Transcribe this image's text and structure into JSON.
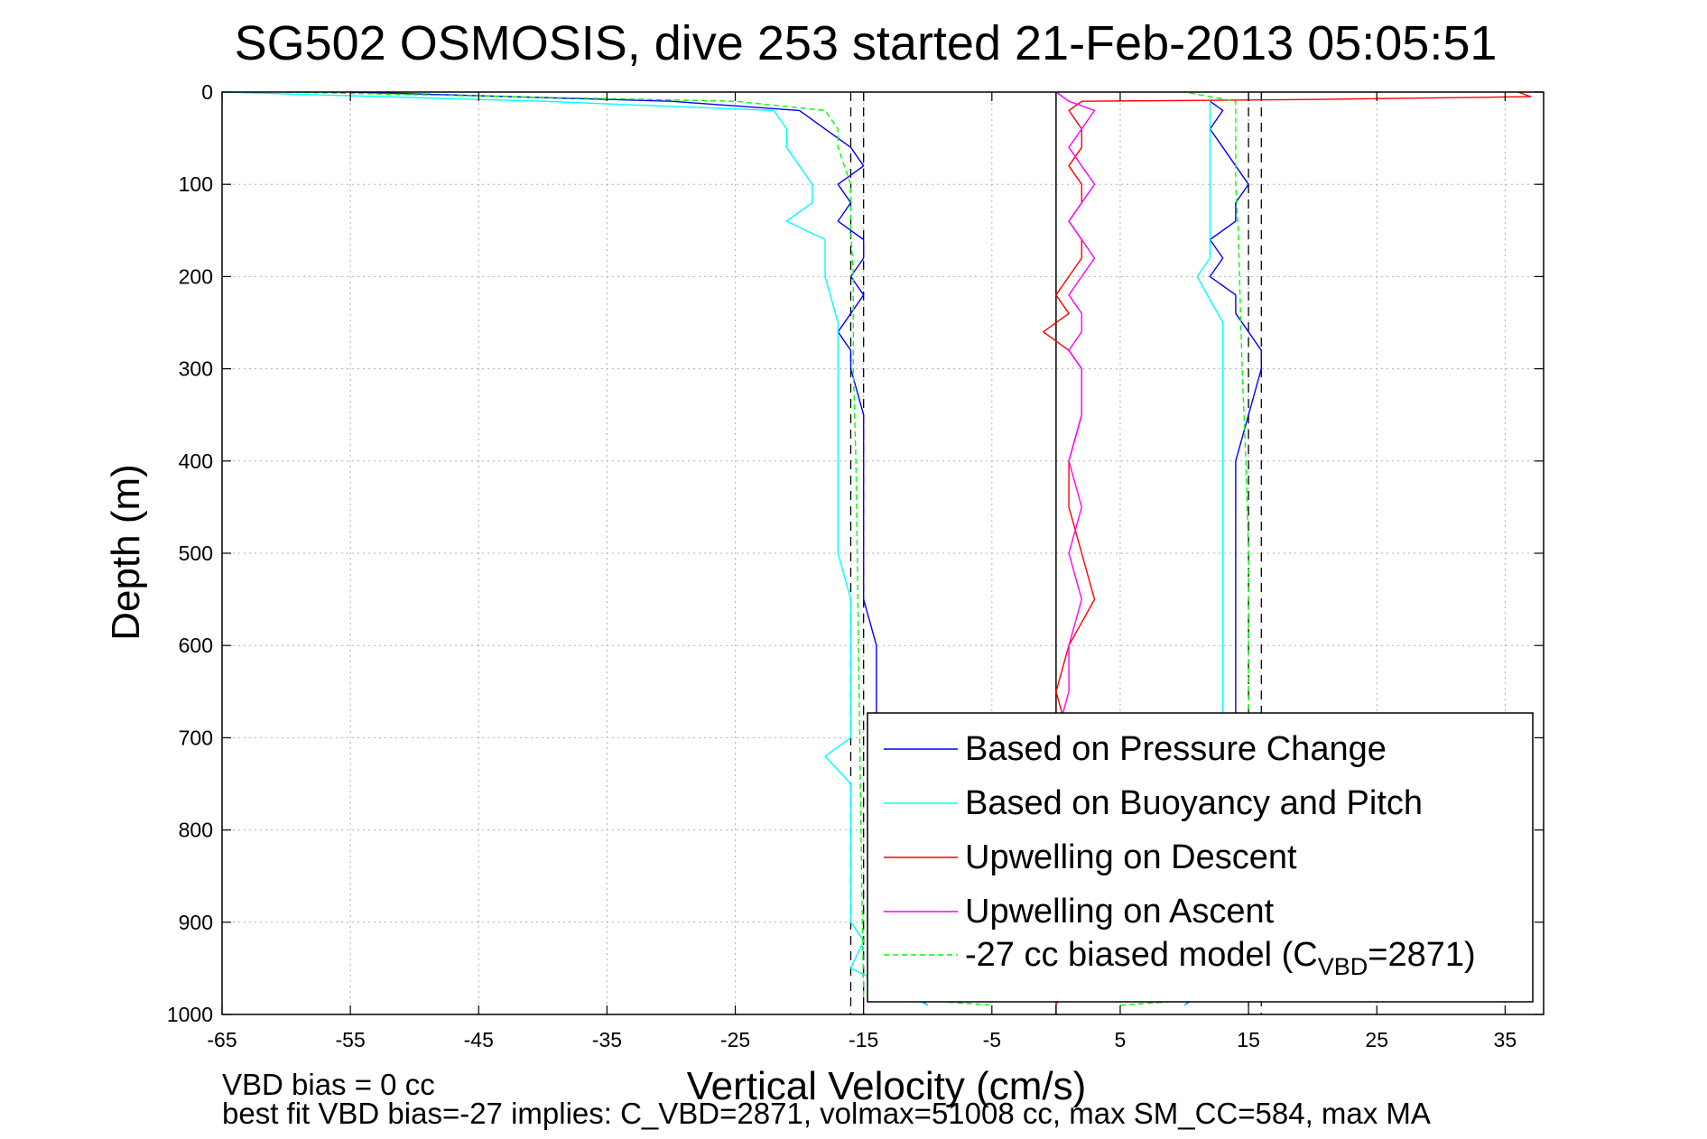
{
  "chart_data": {
    "type": "line",
    "title": "SG502 OSMOSIS, dive 253 started 21-Feb-2013 05:05:51",
    "xlabel": "Vertical Velocity (cm/s)",
    "ylabel": "Depth (m)",
    "xlim": [
      -65,
      38
    ],
    "ylim": [
      1000,
      0
    ],
    "y_reversed": true,
    "x_ticks": [
      -65,
      -55,
      -45,
      -35,
      -25,
      -15,
      -5,
      5,
      15,
      25,
      35
    ],
    "y_ticks": [
      0,
      100,
      200,
      300,
      400,
      500,
      600,
      700,
      800,
      900,
      1000
    ],
    "grid": true,
    "legend_position": "bottom-right",
    "reference_lines": {
      "solid_x": [
        0
      ],
      "dashed_x": [
        -16,
        -15,
        15,
        16
      ]
    },
    "series": [
      {
        "name": "Based on Pressure Change",
        "color": "#0000ff",
        "style": "solid",
        "descent": {
          "depth": [
            0,
            10,
            20,
            40,
            60,
            80,
            100,
            120,
            140,
            160,
            180,
            200,
            220,
            240,
            260,
            280,
            300,
            350,
            400,
            450,
            500,
            550,
            600,
            650,
            700,
            750,
            800,
            850,
            900,
            950,
            990
          ],
          "velocity": [
            -55,
            -30,
            -20,
            -18,
            -16,
            -15,
            -17,
            -16,
            -17,
            -15,
            -15,
            -16,
            -15,
            -16,
            -17,
            -16,
            -16,
            -15,
            -15,
            -15,
            -15,
            -15,
            -14,
            -14,
            -14,
            -14,
            -14,
            -14,
            -14,
            -14,
            -10
          ]
        },
        "ascent": {
          "depth": [
            990,
            950,
            900,
            850,
            800,
            750,
            700,
            650,
            600,
            550,
            500,
            450,
            400,
            350,
            300,
            280,
            260,
            240,
            220,
            200,
            180,
            160,
            140,
            120,
            100,
            80,
            60,
            40,
            20,
            10
          ],
          "velocity": [
            10,
            14,
            14,
            14,
            14,
            14,
            14,
            14,
            14,
            14,
            14,
            14,
            14,
            15,
            16,
            16,
            15,
            14,
            14,
            12,
            13,
            12,
            14,
            14,
            15,
            14,
            13,
            12,
            13,
            12
          ]
        }
      },
      {
        "name": "Based on Buoyancy and Pitch",
        "color": "#00ffff",
        "style": "solid",
        "descent": {
          "depth": [
            0,
            10,
            20,
            40,
            60,
            80,
            100,
            120,
            140,
            160,
            180,
            200,
            250,
            300,
            350,
            400,
            450,
            500,
            550,
            600,
            650,
            700,
            720,
            750,
            800,
            850,
            900,
            920,
            950,
            990
          ],
          "velocity": [
            -65,
            -40,
            -22,
            -21,
            -21,
            -20,
            -19,
            -19,
            -21,
            -18,
            -18,
            -18,
            -17,
            -17,
            -17,
            -17,
            -17,
            -17,
            -16,
            -16,
            -16,
            -16,
            -18,
            -16,
            -16,
            -16,
            -16,
            -15,
            -16,
            -10
          ]
        },
        "ascent": {
          "depth": [
            990,
            950,
            900,
            850,
            800,
            750,
            700,
            650,
            600,
            550,
            500,
            450,
            400,
            350,
            300,
            250,
            200,
            180,
            160,
            140,
            120,
            100,
            80,
            60,
            40,
            20,
            10
          ],
          "velocity": [
            10,
            13,
            13,
            13,
            13,
            13,
            13,
            13,
            13,
            13,
            13,
            13,
            13,
            13,
            13,
            13,
            11,
            12,
            12,
            12,
            12,
            12,
            12,
            12,
            12,
            12,
            12
          ]
        }
      },
      {
        "name": "Upwelling on Descent",
        "color": "#ff0000",
        "style": "solid",
        "depth": [
          0,
          5,
          8,
          10,
          20,
          40,
          60,
          80,
          100,
          120,
          140,
          160,
          180,
          200,
          220,
          240,
          260,
          280,
          300,
          350,
          400,
          450,
          500,
          550,
          600,
          650,
          700,
          750,
          800,
          850,
          900,
          950,
          990
        ],
        "velocity": [
          36,
          37,
          20,
          2,
          1,
          2,
          2,
          1,
          2,
          2,
          1,
          2,
          2,
          1,
          0,
          1,
          -1,
          1,
          2,
          2,
          1,
          1,
          2,
          3,
          1,
          0,
          1,
          1,
          0,
          1,
          0,
          1,
          0
        ]
      },
      {
        "name": "Upwelling on Ascent",
        "color": "#ff00ff",
        "style": "solid",
        "depth": [
          0,
          10,
          20,
          40,
          60,
          80,
          100,
          120,
          140,
          160,
          180,
          200,
          220,
          240,
          260,
          280,
          300,
          350,
          400,
          450,
          500,
          550,
          600,
          650,
          700,
          750,
          800,
          850,
          900,
          950,
          990
        ],
        "velocity": [
          0,
          1,
          3,
          2,
          1,
          2,
          3,
          2,
          1,
          2,
          3,
          2,
          1,
          2,
          2,
          1,
          2,
          2,
          1,
          2,
          1,
          2,
          1,
          1,
          0,
          0,
          0,
          0,
          0,
          0,
          0
        ]
      },
      {
        "name": "-27 cc biased model (C_VBD=2871)",
        "color": "#00ff00",
        "style": "dashed",
        "descent": {
          "depth": [
            0,
            10,
            20,
            40,
            60,
            80,
            100,
            150,
            200,
            300,
            400,
            500,
            600,
            700,
            800,
            900,
            980,
            990
          ],
          "velocity": [
            -60,
            -25,
            -18,
            -17,
            -17,
            -16.5,
            -16,
            -16,
            -15.8,
            -15.8,
            -15.6,
            -15.5,
            -15.4,
            -15.3,
            -15.2,
            -15.1,
            -15,
            -5
          ]
        },
        "ascent": {
          "depth": [
            990,
            980,
            900,
            800,
            700,
            600,
            500,
            400,
            300,
            200,
            150,
            100,
            80,
            60,
            40,
            20,
            10,
            0
          ],
          "velocity": [
            5,
            15,
            15,
            15,
            15,
            15,
            15,
            14.8,
            14.5,
            14.3,
            14.2,
            14,
            14,
            14,
            14,
            14,
            14,
            10
          ]
        }
      }
    ]
  },
  "legend": [
    {
      "key": "pressure",
      "label": "Based on Pressure Change",
      "color": "#0000ff",
      "dashed": false
    },
    {
      "key": "buoyancy",
      "label": "Based on Buoyancy and Pitch",
      "color": "#00ffff",
      "dashed": false
    },
    {
      "key": "descent",
      "label": "Upwelling on Descent",
      "color": "#ff0000",
      "dashed": false
    },
    {
      "key": "ascent",
      "label": "Upwelling on Ascent",
      "color": "#ff00ff",
      "dashed": false
    },
    {
      "key": "model",
      "label": "-27 cc biased model (C",
      "label_sub": "VBD",
      "label_tail": "=2871)",
      "color": "#00ff00",
      "dashed": true
    }
  ],
  "notes": {
    "line1": "VBD bias = 0 cc",
    "line2": "best fit VBD bias=-27 implies: C_VBD=2871, volmax=51008 cc, max SM_CC=584, max MA"
  }
}
